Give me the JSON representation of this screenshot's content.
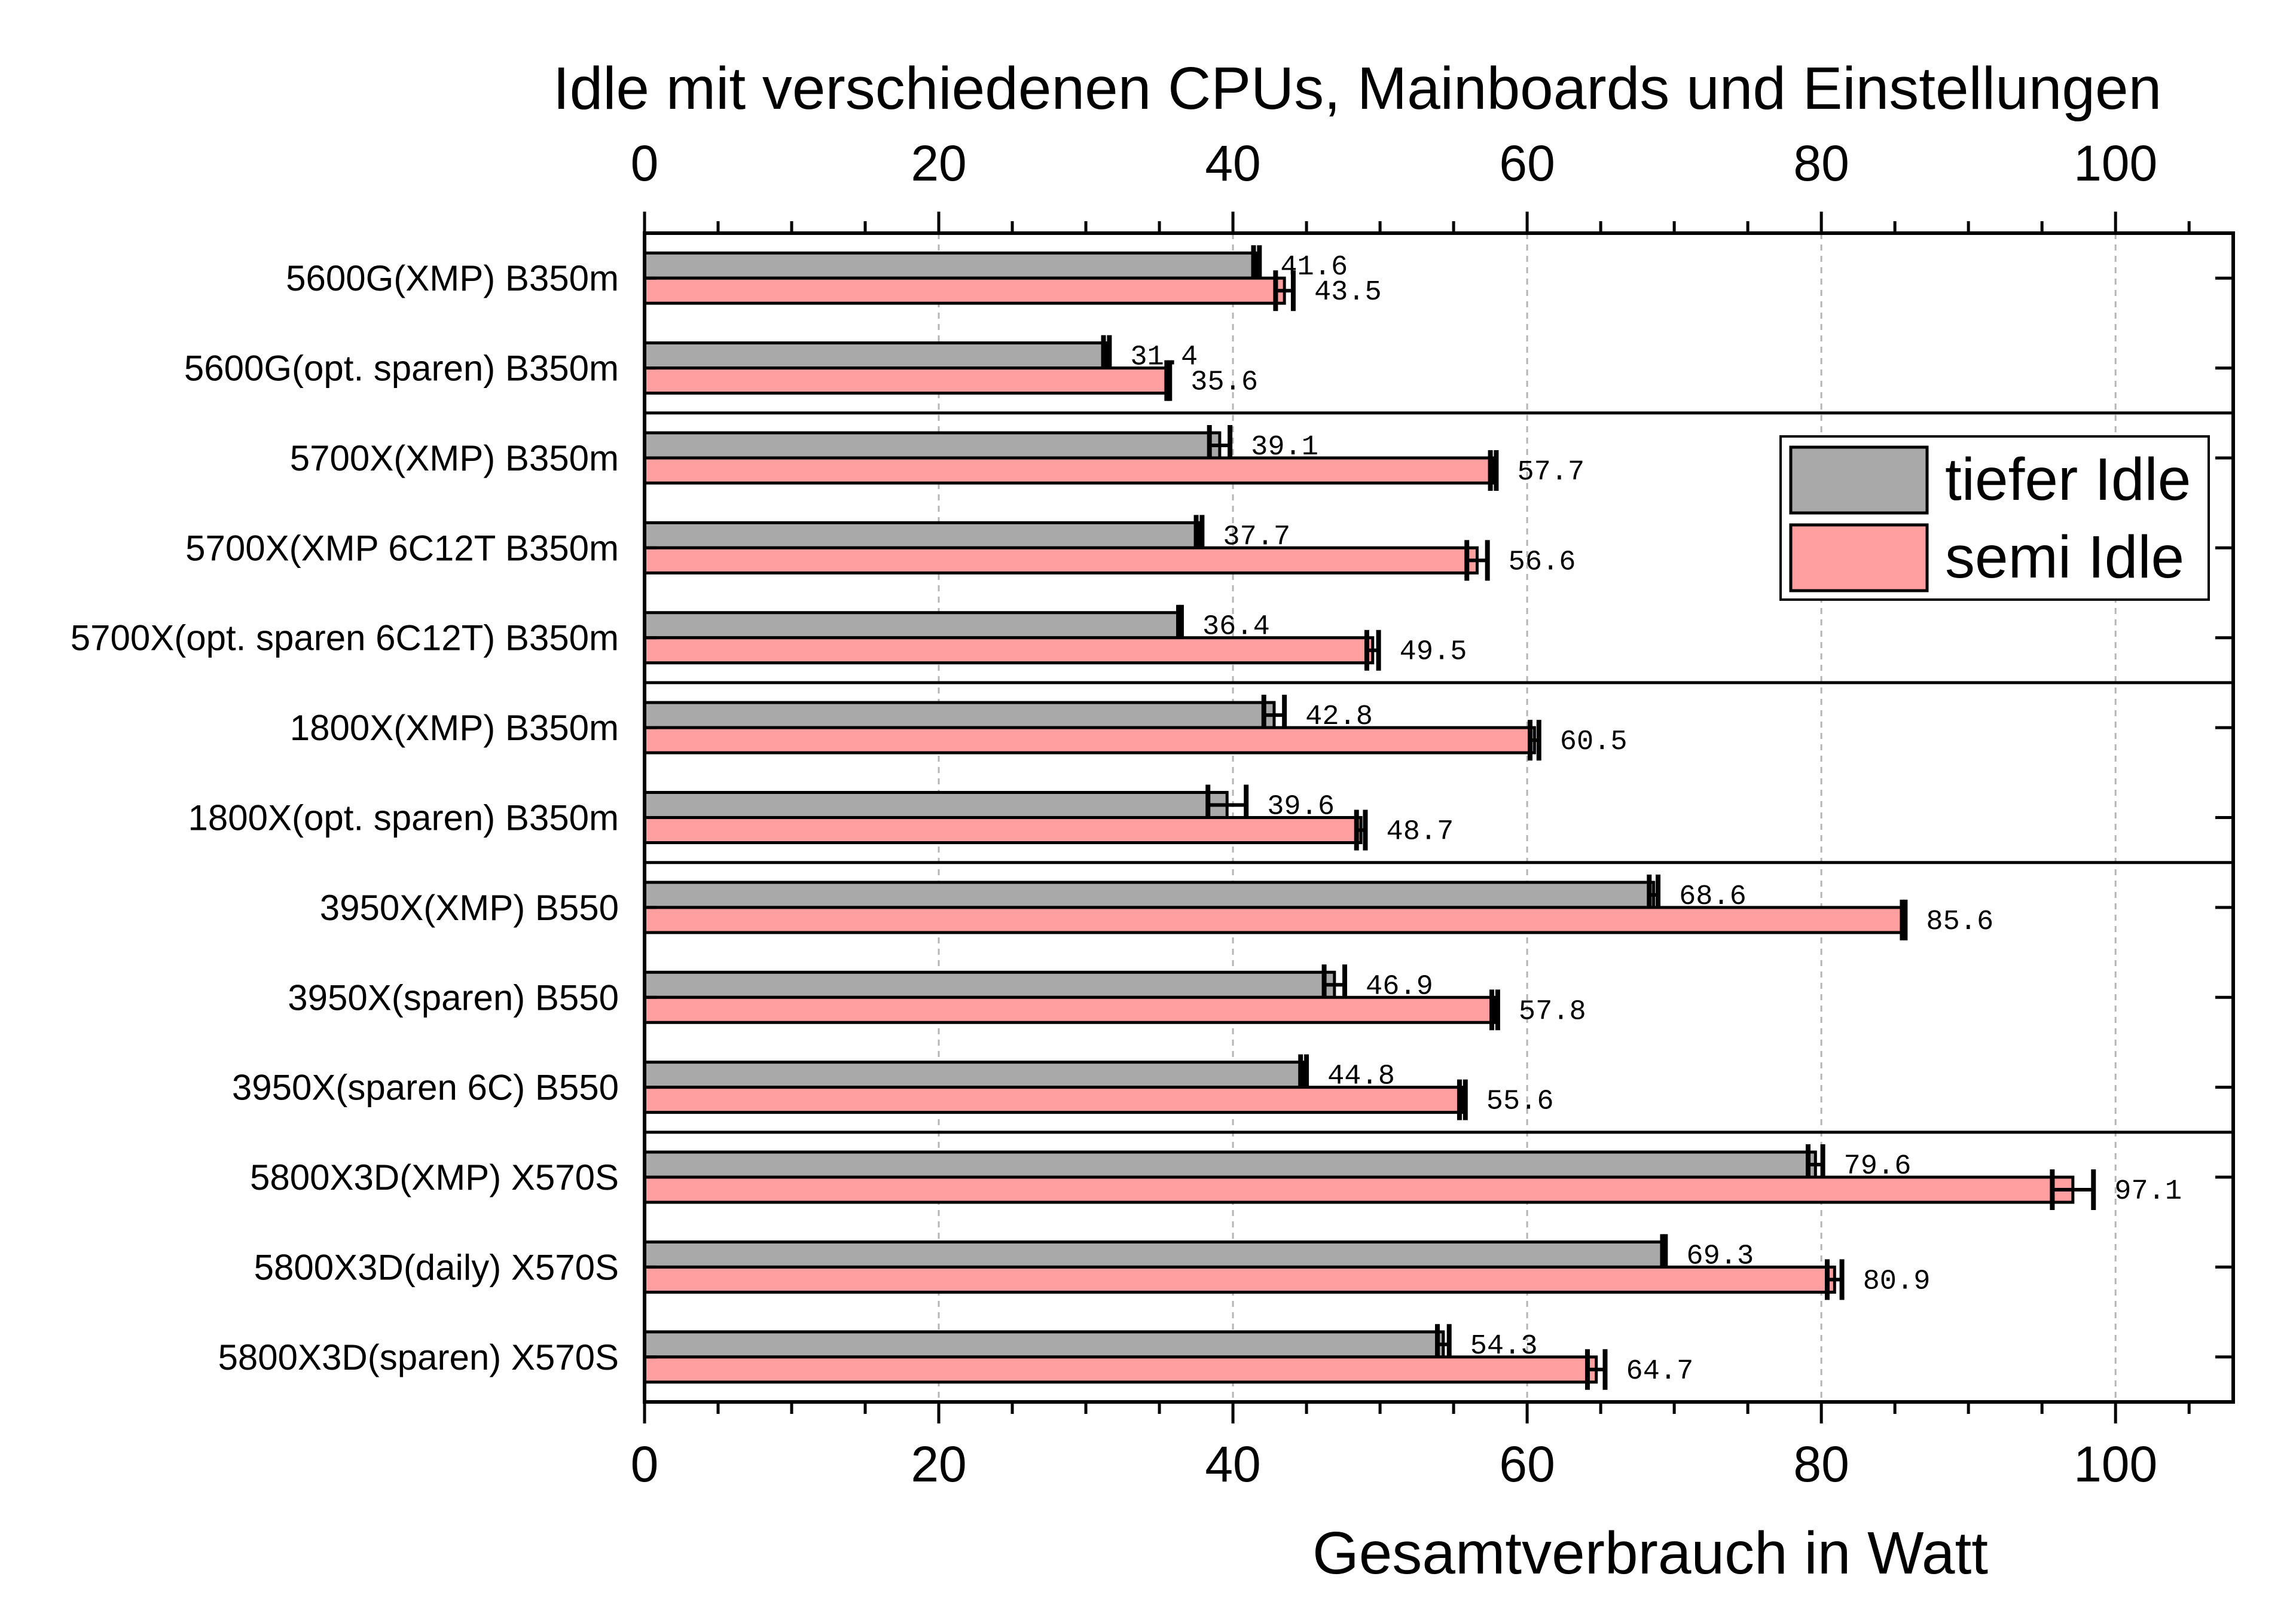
{
  "chart_data": {
    "type": "bar",
    "orientation": "horizontal",
    "title": "Idle mit verschiedenen CPUs, Mainboards und Einstellungen",
    "xlabel": "Gesamtverbrauch in Watt",
    "ylabel": "",
    "xlim": [
      0,
      108
    ],
    "xticks": [
      "0",
      "20",
      "40",
      "60",
      "80",
      "100"
    ],
    "grid": true,
    "legend_position": "top-right",
    "categories": [
      "5600G(XMP) B350m",
      "5600G(opt. sparen) B350m",
      "5700X(XMP) B350m",
      "5700X(XMP 6C12T B350m",
      "5700X(opt. sparen 6C12T) B350m",
      "1800X(XMP) B350m",
      "1800X(opt. sparen) B350m",
      "3950X(XMP) B550",
      "3950X(sparen) B550",
      "3950X(sparen 6C) B550",
      "5800X3D(XMP) X570S",
      "5800X3D(daily) X570S",
      "5800X3D(sparen) X570S"
    ],
    "group_separators_after": [
      1,
      4,
      6,
      9
    ],
    "series": [
      {
        "name": "tiefer Idle",
        "color": "#a9a9a9",
        "values": [
          41.6,
          31.4,
          39.1,
          37.7,
          36.4,
          42.8,
          39.6,
          68.6,
          46.9,
          44.8,
          79.6,
          69.3,
          54.3
        ],
        "errors": [
          0.2,
          0.2,
          0.7,
          0.2,
          0.1,
          0.7,
          1.3,
          0.3,
          0.7,
          0.2,
          0.5,
          0.1,
          0.4
        ],
        "labels": [
          "41.6",
          "31.4",
          "39.1",
          "37.7",
          "36.4",
          "42.8",
          "39.6",
          "68.6",
          "46.9",
          "44.8",
          "79.6",
          "69.3",
          "54.3"
        ]
      },
      {
        "name": "semi Idle",
        "color": "#ff9f9f",
        "values": [
          43.5,
          35.6,
          57.7,
          56.6,
          49.5,
          60.5,
          48.7,
          85.6,
          57.8,
          55.6,
          97.1,
          80.9,
          64.7
        ],
        "errors": [
          0.6,
          0.1,
          0.2,
          0.7,
          0.4,
          0.3,
          0.3,
          0.1,
          0.2,
          0.2,
          1.4,
          0.5,
          0.6
        ],
        "labels": [
          "43.5",
          "35.6",
          "57.7",
          "56.6",
          "49.5",
          "60.5",
          "48.7",
          "85.6",
          "57.8",
          "55.6",
          "97.1",
          "80.9",
          "64.7"
        ]
      }
    ]
  }
}
